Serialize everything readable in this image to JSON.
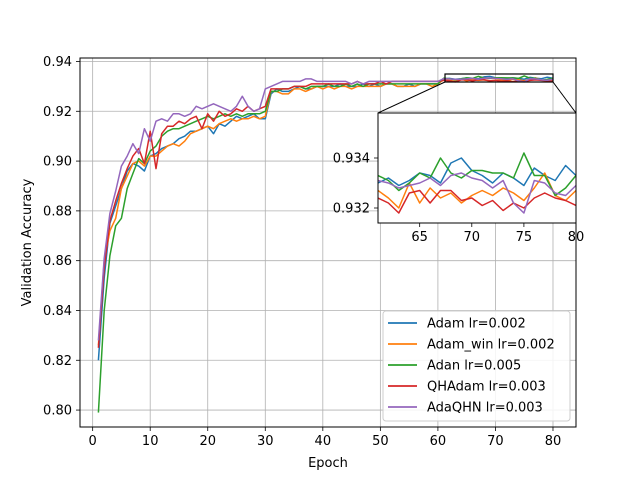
{
  "chart_data": [
    {
      "type": "line",
      "title": "",
      "xlabel": "Epoch",
      "ylabel": "Validation Accuracy",
      "xlim": [
        -2.2,
        84
      ],
      "ylim": [
        0.7932,
        0.9414
      ],
      "xticks": [
        0,
        10,
        20,
        30,
        40,
        50,
        60,
        70,
        80
      ],
      "yticks": [
        0.8,
        0.82,
        0.84,
        0.86,
        0.88,
        0.9,
        0.92,
        0.94
      ],
      "ytick_labels": [
        "0.80",
        "0.82",
        "0.84",
        "0.86",
        "0.88",
        "0.90",
        "0.92",
        "0.94"
      ],
      "grid": true,
      "legend": "lower-right",
      "series": [
        {
          "name": "Adam lr=0.002",
          "color": "#1f77b4",
          "x": [
            1,
            2,
            3,
            4,
            5,
            6,
            7,
            8,
            9,
            10,
            11,
            12,
            13,
            14,
            15,
            16,
            17,
            18,
            19,
            20,
            21,
            22,
            23,
            24,
            25,
            26,
            27,
            28,
            29,
            30,
            31,
            32,
            33,
            34,
            35,
            36,
            37,
            38,
            39,
            40,
            41,
            42,
            43,
            44,
            45,
            46,
            47,
            48,
            49,
            50,
            51,
            52,
            53,
            54,
            55,
            56,
            57,
            58,
            59,
            60,
            61,
            62,
            63,
            64,
            65,
            66,
            67,
            68,
            69,
            70,
            71,
            72,
            73,
            74,
            75,
            76,
            77,
            78,
            79,
            80
          ],
          "y": [
            0.82,
            0.853,
            0.875,
            0.882,
            0.889,
            0.896,
            0.899,
            0.898,
            0.896,
            0.902,
            0.903,
            0.905,
            0.906,
            0.907,
            0.909,
            0.91,
            0.912,
            0.912,
            0.913,
            0.914,
            0.911,
            0.915,
            0.914,
            0.916,
            0.918,
            0.917,
            0.918,
            0.919,
            0.917,
            0.917,
            0.927,
            0.929,
            0.928,
            0.928,
            0.929,
            0.93,
            0.929,
            0.929,
            0.93,
            0.93,
            0.93,
            0.93,
            0.931,
            0.93,
            0.93,
            0.93,
            0.931,
            0.93,
            0.931,
            0.93,
            0.931,
            0.931,
            0.93,
            0.93,
            0.931,
            0.93,
            0.931,
            0.931,
            0.931,
            0.931,
            0.933,
            0.9332,
            0.9329,
            0.9331,
            0.9334,
            0.9333,
            0.933,
            0.9338,
            0.934,
            0.9335,
            0.9333,
            0.933,
            0.9334,
            0.9332,
            0.9329,
            0.9336,
            0.9333,
            0.9331,
            0.9337,
            0.9333
          ]
        },
        {
          "name": "Adam_win lr=0.002",
          "color": "#ff7f0e",
          "x": [
            1,
            2,
            3,
            4,
            5,
            6,
            7,
            8,
            9,
            10,
            11,
            12,
            13,
            14,
            15,
            16,
            17,
            18,
            19,
            20,
            21,
            22,
            23,
            24,
            25,
            26,
            27,
            28,
            29,
            30,
            31,
            32,
            33,
            34,
            35,
            36,
            37,
            38,
            39,
            40,
            41,
            42,
            43,
            44,
            45,
            46,
            47,
            48,
            49,
            50,
            51,
            52,
            53,
            54,
            55,
            56,
            57,
            58,
            59,
            60,
            61,
            62,
            63,
            64,
            65,
            66,
            67,
            68,
            69,
            70,
            71,
            72,
            73,
            74,
            75,
            76,
            77,
            78,
            79,
            80
          ],
          "y": [
            0.826,
            0.86,
            0.872,
            0.877,
            0.889,
            0.894,
            0.899,
            0.9,
            0.898,
            0.902,
            0.902,
            0.904,
            0.906,
            0.907,
            0.906,
            0.908,
            0.911,
            0.912,
            0.913,
            0.914,
            0.913,
            0.915,
            0.916,
            0.917,
            0.916,
            0.917,
            0.917,
            0.918,
            0.917,
            0.918,
            0.928,
            0.928,
            0.927,
            0.927,
            0.929,
            0.929,
            0.928,
            0.929,
            0.93,
            0.929,
            0.93,
            0.929,
            0.93,
            0.93,
            0.929,
            0.93,
            0.93,
            0.93,
            0.93,
            0.93,
            0.931,
            0.931,
            0.93,
            0.93,
            0.93,
            0.93,
            0.931,
            0.931,
            0.93,
            0.931,
            0.9327,
            0.9324,
            0.932,
            0.933,
            0.9322,
            0.9328,
            0.9324,
            0.9326,
            0.9322,
            0.9325,
            0.9327,
            0.9325,
            0.9328,
            0.9326,
            0.9323,
            0.9328,
            0.9334,
            0.9325,
            0.9323,
            0.9327
          ]
        },
        {
          "name": "Adan lr=0.005",
          "color": "#2ca02c",
          "x": [
            1,
            2,
            3,
            4,
            5,
            6,
            7,
            8,
            9,
            10,
            11,
            12,
            13,
            14,
            15,
            16,
            17,
            18,
            19,
            20,
            21,
            22,
            23,
            24,
            25,
            26,
            27,
            28,
            29,
            30,
            31,
            32,
            33,
            34,
            35,
            36,
            37,
            38,
            39,
            40,
            41,
            42,
            43,
            44,
            45,
            46,
            47,
            48,
            49,
            50,
            51,
            52,
            53,
            54,
            55,
            56,
            57,
            58,
            59,
            60,
            61,
            62,
            63,
            64,
            65,
            66,
            67,
            68,
            69,
            70,
            71,
            72,
            73,
            74,
            75,
            76,
            77,
            78,
            79,
            80
          ],
          "y": [
            0.799,
            0.84,
            0.862,
            0.874,
            0.877,
            0.889,
            0.895,
            0.901,
            0.899,
            0.904,
            0.906,
            0.91,
            0.912,
            0.913,
            0.913,
            0.914,
            0.915,
            0.916,
            0.917,
            0.918,
            0.917,
            0.918,
            0.919,
            0.918,
            0.919,
            0.918,
            0.919,
            0.919,
            0.919,
            0.92,
            0.928,
            0.928,
            0.929,
            0.929,
            0.93,
            0.93,
            0.929,
            0.93,
            0.93,
            0.93,
            0.931,
            0.93,
            0.93,
            0.931,
            0.93,
            0.931,
            0.93,
            0.931,
            0.931,
            0.931,
            0.931,
            0.931,
            0.931,
            0.931,
            0.931,
            0.931,
            0.931,
            0.931,
            0.931,
            0.931,
            0.9333,
            0.9331,
            0.9327,
            0.933,
            0.9334,
            0.9332,
            0.934,
            0.9334,
            0.9332,
            0.9335,
            0.9335,
            0.9334,
            0.9334,
            0.9332,
            0.9342,
            0.9333,
            0.9333,
            0.9325,
            0.9328,
            0.9333
          ]
        },
        {
          "name": "QHAdam lr=0.003",
          "color": "#d62728",
          "x": [
            1,
            2,
            3,
            4,
            5,
            6,
            7,
            8,
            9,
            10,
            11,
            12,
            13,
            14,
            15,
            16,
            17,
            18,
            19,
            20,
            21,
            22,
            23,
            24,
            25,
            26,
            27,
            28,
            29,
            30,
            31,
            32,
            33,
            34,
            35,
            36,
            37,
            38,
            39,
            40,
            41,
            42,
            43,
            44,
            45,
            46,
            47,
            48,
            49,
            50,
            51,
            52,
            53,
            54,
            55,
            56,
            57,
            58,
            59,
            60,
            61,
            62,
            63,
            64,
            65,
            66,
            67,
            68,
            69,
            70,
            71,
            72,
            73,
            74,
            75,
            76,
            77,
            78,
            79,
            80
          ],
          "y": [
            0.825,
            0.857,
            0.876,
            0.884,
            0.891,
            0.897,
            0.902,
            0.905,
            0.899,
            0.912,
            0.897,
            0.911,
            0.914,
            0.914,
            0.916,
            0.915,
            0.917,
            0.918,
            0.913,
            0.919,
            0.916,
            0.92,
            0.918,
            0.919,
            0.921,
            0.92,
            0.922,
            0.92,
            0.921,
            0.922,
            0.929,
            0.929,
            0.929,
            0.929,
            0.93,
            0.93,
            0.93,
            0.931,
            0.931,
            0.931,
            0.931,
            0.931,
            0.931,
            0.931,
            0.931,
            0.932,
            0.931,
            0.931,
            0.931,
            0.932,
            0.931,
            0.932,
            0.932,
            0.932,
            0.932,
            0.932,
            0.932,
            0.932,
            0.932,
            0.932,
            0.9324,
            0.9322,
            0.9318,
            0.9326,
            0.9327,
            0.9322,
            0.9327,
            0.9327,
            0.9323,
            0.9324,
            0.9321,
            0.9323,
            0.9319,
            0.9322,
            0.932,
            0.9324,
            0.9326,
            0.9324,
            0.9323,
            0.9321
          ]
        },
        {
          "name": "AdaQHN lr=0.003",
          "color": "#9467bd",
          "x": [
            1,
            2,
            3,
            4,
            5,
            6,
            7,
            8,
            9,
            10,
            11,
            12,
            13,
            14,
            15,
            16,
            17,
            18,
            19,
            20,
            21,
            22,
            23,
            24,
            25,
            26,
            27,
            28,
            29,
            30,
            31,
            32,
            33,
            34,
            35,
            36,
            37,
            38,
            39,
            40,
            41,
            42,
            43,
            44,
            45,
            46,
            47,
            48,
            49,
            50,
            51,
            52,
            53,
            54,
            55,
            56,
            57,
            58,
            59,
            60,
            61,
            62,
            63,
            64,
            65,
            66,
            67,
            68,
            69,
            70,
            71,
            72,
            73,
            74,
            75,
            76,
            77,
            78,
            79,
            80
          ],
          "y": [
            0.828,
            0.861,
            0.879,
            0.888,
            0.898,
            0.902,
            0.907,
            0.903,
            0.913,
            0.908,
            0.916,
            0.917,
            0.916,
            0.919,
            0.919,
            0.918,
            0.919,
            0.922,
            0.921,
            0.922,
            0.923,
            0.922,
            0.921,
            0.92,
            0.922,
            0.926,
            0.922,
            0.92,
            0.921,
            0.929,
            0.93,
            0.931,
            0.932,
            0.932,
            0.932,
            0.932,
            0.933,
            0.933,
            0.932,
            0.932,
            0.932,
            0.932,
            0.932,
            0.932,
            0.931,
            0.932,
            0.931,
            0.932,
            0.932,
            0.932,
            0.932,
            0.932,
            0.932,
            0.932,
            0.932,
            0.932,
            0.932,
            0.932,
            0.932,
            0.932,
            0.9331,
            0.933,
            0.9328,
            0.9329,
            0.933,
            0.9332,
            0.9329,
            0.9333,
            0.9334,
            0.9332,
            0.9331,
            0.9328,
            0.9331,
            0.9322,
            0.9318,
            0.9331,
            0.933,
            0.9326,
            0.9325,
            0.9329
          ]
        }
      ]
    },
    {
      "type": "line",
      "title": "",
      "xlim": [
        61,
        80
      ],
      "ylim": [
        0.9314,
        0.9358
      ],
      "xticks": [
        65,
        70,
        75,
        80
      ],
      "yticks": [
        0.932,
        0.934
      ],
      "ytick_labels": [
        "0.932",
        "0.934"
      ],
      "grid": false,
      "note_series_source": "inset zoom of epochs 61-80 of the same five series"
    }
  ]
}
